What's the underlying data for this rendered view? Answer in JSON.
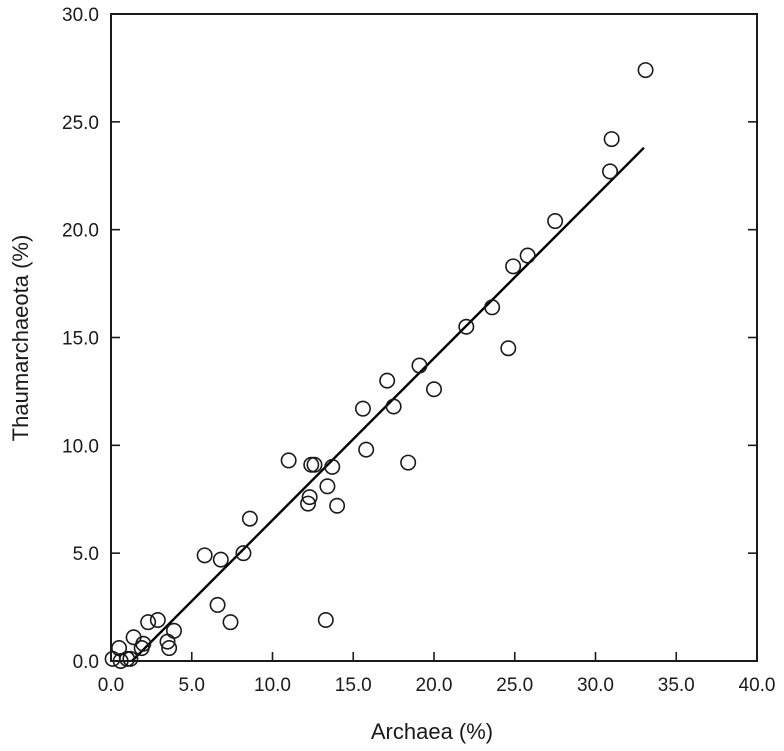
{
  "chart_data": {
    "type": "scatter",
    "title": "",
    "xlabel": "Archaea (%)",
    "ylabel": "Thaumarchaeota (%)",
    "xlim": [
      0,
      40
    ],
    "ylim": [
      0,
      30
    ],
    "xticks": [
      "0.0",
      "5.0",
      "10.0",
      "15.0",
      "20.0",
      "25.0",
      "30.0",
      "35.0",
      "40.0"
    ],
    "yticks": [
      "0.0",
      "5.0",
      "10.0",
      "15.0",
      "20.0",
      "25.0",
      "30.0"
    ],
    "grid": false,
    "legend": "none",
    "marker": "open-circle",
    "points": [
      [
        0.1,
        0.1
      ],
      [
        0.5,
        0.6
      ],
      [
        0.6,
        0.0
      ],
      [
        1.0,
        0.1
      ],
      [
        1.2,
        0.1
      ],
      [
        1.4,
        1.1
      ],
      [
        1.9,
        0.6
      ],
      [
        2.0,
        0.8
      ],
      [
        2.3,
        1.8
      ],
      [
        2.9,
        1.9
      ],
      [
        3.5,
        0.9
      ],
      [
        3.6,
        0.6
      ],
      [
        3.9,
        1.4
      ],
      [
        5.8,
        4.9
      ],
      [
        6.6,
        2.6
      ],
      [
        6.8,
        4.7
      ],
      [
        7.4,
        1.8
      ],
      [
        8.2,
        5.0
      ],
      [
        8.6,
        6.6
      ],
      [
        11.0,
        9.3
      ],
      [
        12.2,
        7.3
      ],
      [
        12.3,
        7.6
      ],
      [
        12.4,
        9.1
      ],
      [
        12.6,
        9.1
      ],
      [
        13.3,
        1.9
      ],
      [
        13.4,
        8.1
      ],
      [
        13.7,
        9.0
      ],
      [
        14.0,
        7.2
      ],
      [
        15.6,
        11.7
      ],
      [
        15.8,
        9.8
      ],
      [
        17.1,
        13.0
      ],
      [
        17.5,
        11.8
      ],
      [
        18.4,
        9.2
      ],
      [
        19.1,
        13.7
      ],
      [
        20.0,
        12.6
      ],
      [
        22.0,
        15.5
      ],
      [
        23.6,
        16.4
      ],
      [
        24.6,
        14.5
      ],
      [
        24.9,
        18.3
      ],
      [
        25.8,
        18.8
      ],
      [
        27.5,
        20.4
      ],
      [
        30.9,
        22.7
      ],
      [
        31.0,
        24.2
      ],
      [
        33.1,
        27.4
      ]
    ],
    "fit_line": {
      "x": [
        1.3,
        33.0
      ],
      "y": [
        0.0,
        23.8
      ]
    },
    "colors": {
      "axis": "#1a1a1a",
      "marker_stroke": "#1a1a1a",
      "marker_fill": "#ffffff",
      "line": "#000000"
    }
  }
}
